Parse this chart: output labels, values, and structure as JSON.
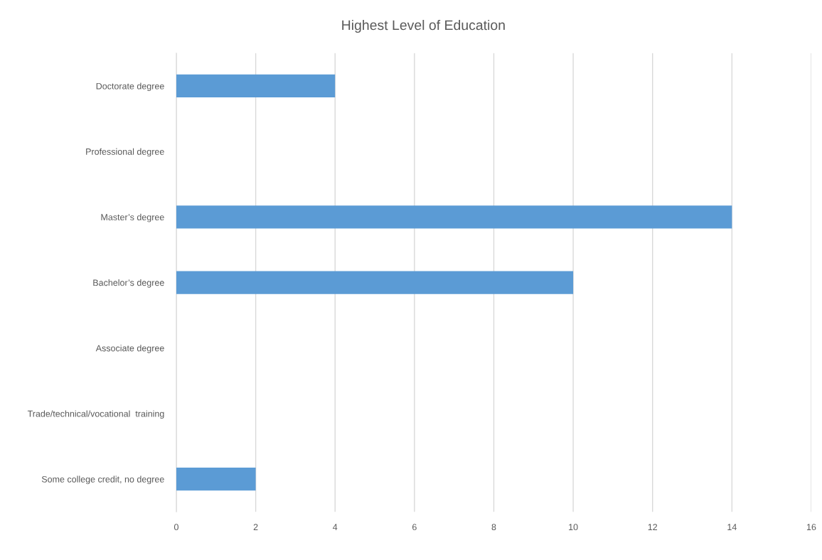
{
  "chart_data": {
    "type": "bar",
    "orientation": "horizontal",
    "title": "Highest Level of Education",
    "categories": [
      "Doctorate degree",
      "Professional degree",
      "Master’s degree",
      "Bachelor’s degree",
      "Associate degree",
      "Trade/technical/vocational  training",
      "Some college credit, no degree"
    ],
    "values": [
      4,
      0,
      14,
      10,
      0,
      0,
      2
    ],
    "color": "#5b9bd5",
    "xlim": [
      0,
      16
    ],
    "xticks": [
      0,
      2,
      4,
      6,
      8,
      10,
      12,
      14,
      16
    ],
    "grid": "x"
  }
}
